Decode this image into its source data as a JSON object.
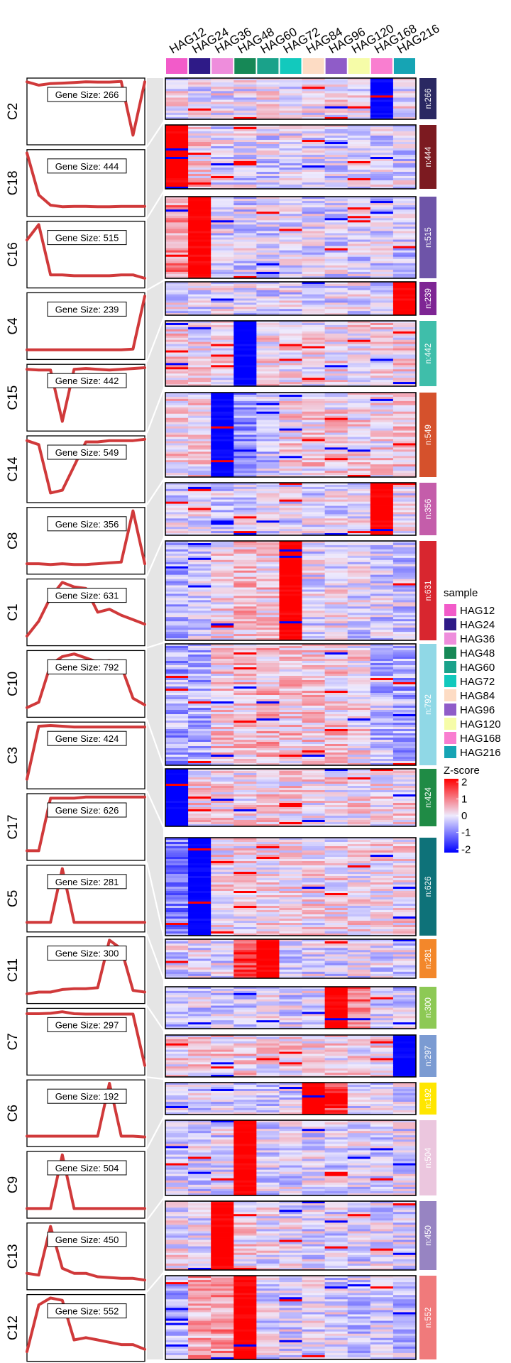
{
  "chart_data": {
    "type": "heatmap",
    "samples": [
      "HAG12",
      "HAG24",
      "HAG36",
      "HAG48",
      "HAG60",
      "HAG72",
      "HAG84",
      "HAG96",
      "HAG120",
      "HAG168",
      "HAG216"
    ],
    "sample_colors": [
      "#F25BC9",
      "#2E1A87",
      "#EE8DDC",
      "#168856",
      "#1AA28A",
      "#12C9BD",
      "#FDDCC4",
      "#8F5CC8",
      "#F6FCA8",
      "#F97ED0",
      "#16A4B4"
    ],
    "clusters": [
      {
        "label": "C2",
        "gene_size_label": "Gene Size: 266",
        "n_label": "n:266",
        "color": "#2A2862",
        "trend": [
          0.04,
          -0.12,
          -0.04,
          -0.02,
          0.01,
          0.04,
          0.03,
          0.03,
          0.06,
          -2.55,
          0.04
        ],
        "feature": {
          "col": 9,
          "sign": -1
        }
      },
      {
        "label": "C18",
        "gene_size_label": "Gene Size: 444",
        "n_label": "n:444",
        "color": "#7C1A20",
        "trend": [
          3.2,
          0.45,
          -0.22,
          -0.32,
          -0.3,
          -0.3,
          -0.32,
          -0.32,
          -0.3,
          -0.3,
          -0.3
        ],
        "feature": {
          "col": 0,
          "sign": 1
        }
      },
      {
        "label": "C16",
        "gene_size_label": "Gene Size: 515",
        "n_label": "n:515",
        "color": "#6E54A8",
        "trend": [
          1.7,
          2.6,
          -0.35,
          -0.35,
          -0.4,
          -0.4,
          -0.4,
          -0.4,
          -0.35,
          -0.35,
          -0.55
        ],
        "feature": {
          "col": 1,
          "sign": 1
        }
      },
      {
        "label": "C4",
        "gene_size_label": "Gene Size: 239",
        "n_label": "n:239",
        "color": "#7E2594",
        "trend": [
          -0.3,
          -0.3,
          -0.3,
          -0.3,
          -0.3,
          -0.3,
          -0.3,
          -0.3,
          -0.3,
          -0.25,
          3.2
        ],
        "feature": {
          "col": 10,
          "sign": 1
        }
      },
      {
        "label": "C15",
        "gene_size_label": "Gene Size: 442",
        "n_label": "n:442",
        "color": "#3FBEAA",
        "trend": [
          0.3,
          0.25,
          0.25,
          -3.0,
          0.3,
          0.35,
          0.3,
          0.25,
          0.3,
          0.35,
          0.4
        ],
        "feature": {
          "col": 3,
          "sign": -1
        }
      },
      {
        "label": "C14",
        "gene_size_label": "Gene Size: 549",
        "n_label": "n:549",
        "color": "#D5512C",
        "trend": [
          0.4,
          0.25,
          -1.55,
          -1.45,
          -0.55,
          0.35,
          0.35,
          0.4,
          0.4,
          0.4,
          0.45
        ],
        "feature": {
          "col": 2,
          "sign": -1
        }
      },
      {
        "label": "C8",
        "gene_size_label": "Gene Size: 356",
        "n_label": "n:356",
        "color": "#C45DAA",
        "trend": [
          -0.3,
          -0.3,
          -0.35,
          -0.3,
          -0.35,
          -0.35,
          -0.3,
          -0.25,
          -0.2,
          3.0,
          -0.3
        ],
        "feature": {
          "col": 9,
          "sign": 1
        }
      },
      {
        "label": "C1",
        "gene_size_label": "Gene Size: 631",
        "n_label": "n:631",
        "color": "#D8262F",
        "trend": [
          -1.0,
          -0.5,
          0.3,
          0.8,
          0.65,
          0.6,
          -0.2,
          -0.1,
          -0.3,
          -0.45,
          -0.6
        ],
        "feature": {
          "col": 5,
          "sign": 1
        }
      },
      {
        "label": "C10",
        "gene_size_label": "Gene Size: 792",
        "n_label": "n:792",
        "color": "#90D8E6",
        "trend": [
          -1.2,
          -1.0,
          0.4,
          0.7,
          0.8,
          0.65,
          0.5,
          0.55,
          0.35,
          -0.85,
          -1.1
        ],
        "feature": null
      },
      {
        "label": "C3",
        "gene_size_label": "Gene Size: 424",
        "n_label": "n:424",
        "color": "#1F8B45",
        "trend": [
          -3.1,
          0.35,
          0.4,
          0.35,
          0.3,
          0.3,
          0.3,
          0.3,
          0.3,
          0.3,
          0.3
        ],
        "feature": {
          "col": 0,
          "sign": -1
        }
      },
      {
        "label": "C17",
        "gene_size_label": "Gene Size: 626",
        "n_label": "n:626",
        "color": "#0E7279",
        "trend": [
          -2.0,
          -2.0,
          0.2,
          0.2,
          0.2,
          0.25,
          0.25,
          0.25,
          0.25,
          0.25,
          0.25
        ],
        "feature": {
          "col": 1,
          "sign": -1
        }
      },
      {
        "label": "C5",
        "gene_size_label": "Gene Size: 281",
        "n_label": "n:281",
        "color": "#F3872A",
        "trend": [
          -0.3,
          -0.3,
          -0.3,
          3.0,
          -0.3,
          -0.3,
          -0.3,
          -0.3,
          -0.3,
          -0.3,
          -0.3
        ],
        "feature": {
          "col": 4,
          "sign": 1
        }
      },
      {
        "label": "C11",
        "gene_size_label": "Gene Size: 300",
        "n_label": "n:300",
        "color": "#8DC955",
        "trend": [
          -0.6,
          -0.5,
          -0.5,
          -0.35,
          -0.3,
          -0.3,
          -0.25,
          2.5,
          2.0,
          -0.4,
          -0.5
        ],
        "feature": {
          "col": 7,
          "sign": 1
        }
      },
      {
        "label": "C7",
        "gene_size_label": "Gene Size: 297",
        "n_label": "n:297",
        "color": "#7B9BD2",
        "trend": [
          0.32,
          0.32,
          0.35,
          0.45,
          0.32,
          0.3,
          0.3,
          0.3,
          0.3,
          0.3,
          -3.0
        ],
        "feature": {
          "col": 10,
          "sign": -1
        }
      },
      {
        "label": "C6",
        "gene_size_label": "Gene Size: 192",
        "n_label": "n:192",
        "color": "#FFE600",
        "trend": [
          -0.3,
          -0.3,
          -0.3,
          -0.3,
          -0.3,
          -0.3,
          -0.3,
          3.2,
          -0.3,
          -0.3,
          -0.35
        ],
        "feature": {
          "col": 6,
          "sign": 1
        }
      },
      {
        "label": "C9",
        "gene_size_label": "Gene Size: 504",
        "n_label": "n:504",
        "color": "#EBC6DE",
        "trend": [
          -0.3,
          -0.3,
          -0.3,
          3.2,
          -0.3,
          -0.3,
          -0.3,
          -0.3,
          -0.3,
          -0.3,
          -0.3
        ],
        "feature": {
          "col": 3,
          "sign": 1
        }
      },
      {
        "label": "C13",
        "gene_size_label": "Gene Size: 450",
        "n_label": "n:450",
        "color": "#9784C2",
        "trend": [
          0.0,
          -0.1,
          2.8,
          0.3,
          0.0,
          0.0,
          -0.2,
          -0.25,
          -0.3,
          -0.3,
          -0.4
        ],
        "feature": {
          "col": 2,
          "sign": 1
        }
      },
      {
        "label": "C12",
        "gene_size_label": "Gene Size: 552",
        "n_label": "n:552",
        "color": "#F07A7B",
        "trend": [
          -0.8,
          1.2,
          1.5,
          1.4,
          -0.3,
          -0.2,
          -0.3,
          -0.4,
          -0.5,
          -0.5,
          -0.7
        ],
        "feature": {
          "col": 3,
          "sign": 1
        }
      }
    ],
    "legend": {
      "sample_title": "sample",
      "zscore_title": "Z-score",
      "zscore_ticks": [
        {
          "value": 2,
          "label": "2"
        },
        {
          "value": 1,
          "label": "1"
        },
        {
          "value": 0,
          "label": "0"
        },
        {
          "value": -1,
          "label": "-1"
        },
        {
          "value": -2,
          "label": "-2"
        }
      ],
      "zscore_range": [
        -2.2,
        2.2
      ],
      "placement": "right"
    },
    "grid": false
  }
}
